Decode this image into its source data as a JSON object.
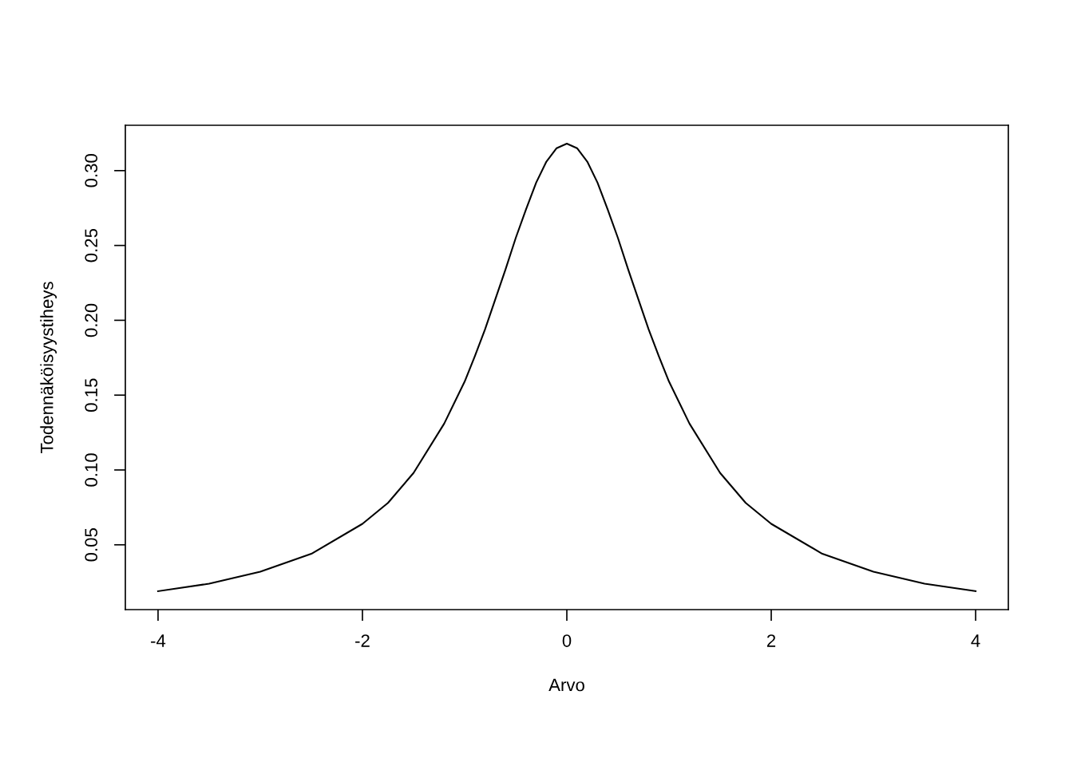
{
  "chart_data": {
    "type": "line",
    "xlabel": "Arvo",
    "ylabel": "Todennäköisyystiheys",
    "x": [
      -4,
      -3.5,
      -3,
      -2.5,
      -2,
      -1.75,
      -1.5,
      -1.2,
      -1,
      -0.9,
      -0.8,
      -0.7,
      -0.6,
      -0.5,
      -0.4,
      -0.3,
      -0.2,
      -0.1,
      0,
      0.1,
      0.2,
      0.3,
      0.4,
      0.5,
      0.6,
      0.7,
      0.8,
      0.9,
      1,
      1.2,
      1.5,
      1.75,
      2,
      2.5,
      3,
      3.5,
      4
    ],
    "series": [
      {
        "color": "#000000",
        "values": [
          0.019,
          0.024,
          0.032,
          0.044,
          0.064,
          0.078,
          0.098,
          0.131,
          0.159,
          0.176,
          0.194,
          0.214,
          0.234,
          0.255,
          0.274,
          0.292,
          0.306,
          0.315,
          0.318,
          0.315,
          0.306,
          0.292,
          0.274,
          0.255,
          0.234,
          0.214,
          0.194,
          0.176,
          0.159,
          0.131,
          0.098,
          0.078,
          0.064,
          0.044,
          0.032,
          0.024,
          0.019
        ]
      }
    ],
    "xlim": [
      -4.32,
      4.32
    ],
    "ylim": [
      0.0067,
      0.3303
    ],
    "xticks": [
      -4,
      -2,
      0,
      2,
      4
    ],
    "yticks": [
      {
        "value": 0.05,
        "label": "0.05"
      },
      {
        "value": 0.1,
        "label": "0.10"
      },
      {
        "value": 0.15,
        "label": "0.15"
      },
      {
        "value": 0.2,
        "label": "0.20"
      },
      {
        "value": 0.25,
        "label": "0.25"
      },
      {
        "value": 0.3,
        "label": "0.30"
      }
    ],
    "grid": false,
    "legend": false,
    "marker": "none",
    "line_style": "solid"
  }
}
